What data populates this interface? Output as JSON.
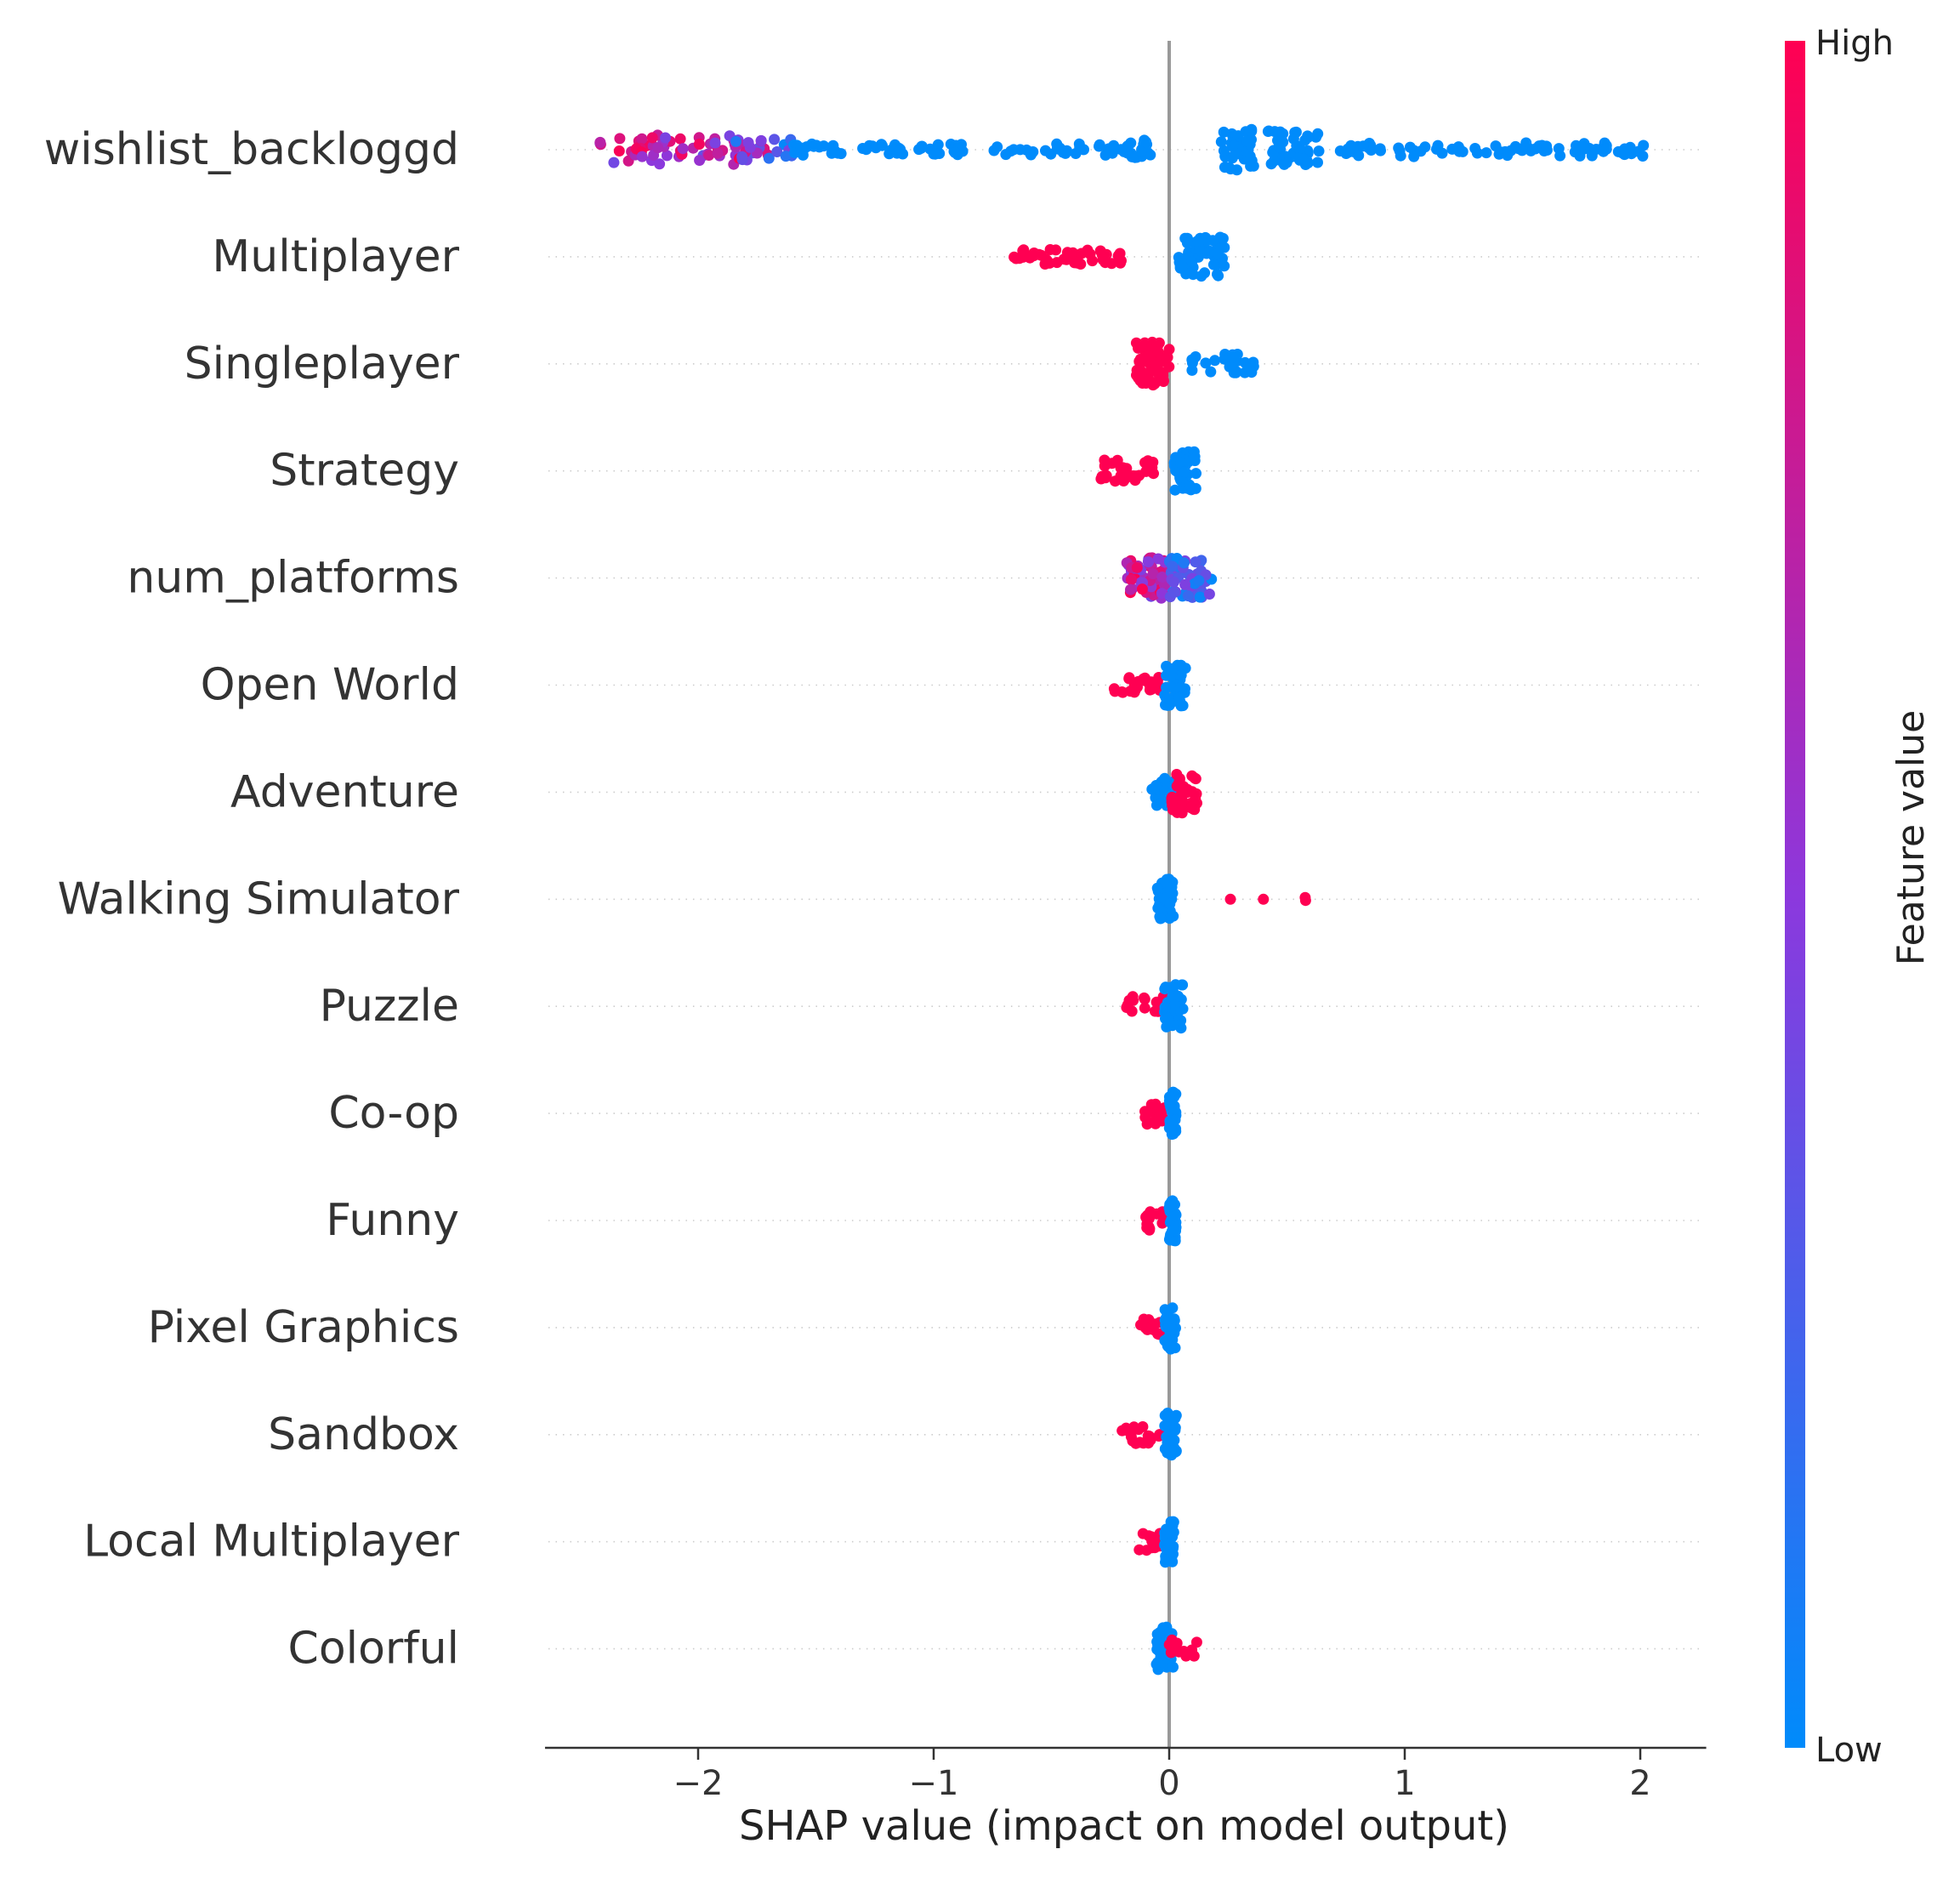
{
  "chart_data": {
    "type": "scatter",
    "subtype": "shap-beeswarm",
    "xlabel": "SHAP value (impact on model output)",
    "xlim": [
      -2.65,
      2.28
    ],
    "xticks": [
      -2,
      -1,
      0,
      1,
      2
    ],
    "xtick_labels": [
      "−2",
      "−1",
      "0",
      "1",
      "2"
    ],
    "zero_line": 0,
    "grid": "dotted-row-guides",
    "colorbar": {
      "title": "Feature value",
      "high_label": "High",
      "low_label": "Low",
      "low_color": "#008BFB",
      "mid_color": "#8C38DD",
      "high_color": "#FF0052"
    },
    "features": [
      {
        "name": "wishlist_backloggd",
        "clusters": [
          {
            "from": -2.42,
            "to": -1.7,
            "count": 70,
            "spread": 0.3,
            "mix": [
              0.35,
              1.0
            ]
          },
          {
            "from": -1.9,
            "to": -1.6,
            "count": 14,
            "spread": 0.22,
            "mix": [
              0.0,
              0.5
            ]
          },
          {
            "from": -1.6,
            "to": -0.15,
            "count": 90,
            "spread": 0.12,
            "mix": [
              0.0,
              0.0
            ]
          },
          {
            "from": -0.18,
            "to": -0.08,
            "count": 16,
            "spread": 0.2,
            "mix": [
              0.0,
              0.0
            ]
          },
          {
            "from": 0.22,
            "to": 0.36,
            "count": 36,
            "spread": 0.42,
            "mix": [
              0.0,
              0.0
            ]
          },
          {
            "from": 0.42,
            "to": 0.65,
            "count": 44,
            "spread": 0.38,
            "mix": [
              0.0,
              0.0
            ]
          },
          {
            "from": 0.7,
            "to": 2.05,
            "count": 78,
            "spread": 0.14,
            "mix": [
              0.0,
              0.0
            ]
          }
        ]
      },
      {
        "name": "Multiplayer",
        "clusters": [
          {
            "from": -0.66,
            "to": -0.18,
            "count": 48,
            "spread": 0.16,
            "mix": [
              1.0,
              1.0
            ]
          },
          {
            "from": 0.04,
            "to": 0.24,
            "count": 52,
            "spread": 0.4,
            "mix": [
              0.0,
              0.0
            ]
          }
        ]
      },
      {
        "name": "Singleplayer",
        "clusters": [
          {
            "from": -0.14,
            "to": 0.0,
            "count": 70,
            "spread": 0.44,
            "mix": [
              1.0,
              1.0
            ]
          },
          {
            "from": 0.06,
            "to": 0.36,
            "count": 26,
            "spread": 0.2,
            "mix": [
              0.0,
              0.0
            ]
          }
        ]
      },
      {
        "name": "Strategy",
        "clusters": [
          {
            "from": -0.3,
            "to": -0.06,
            "count": 30,
            "spread": 0.22,
            "mix": [
              1.0,
              1.0
            ]
          },
          {
            "from": 0.02,
            "to": 0.12,
            "count": 34,
            "spread": 0.4,
            "mix": [
              0.0,
              0.0
            ]
          }
        ]
      },
      {
        "name": "num_platforms",
        "clusters": [
          {
            "from": -0.18,
            "to": 0.0,
            "count": 70,
            "spread": 0.42,
            "mix": [
              0.4,
              1.0
            ]
          },
          {
            "from": 0.0,
            "to": 0.18,
            "count": 50,
            "spread": 0.4,
            "mix": [
              0.0,
              0.45
            ]
          }
        ]
      },
      {
        "name": "Open World",
        "clusters": [
          {
            "from": -0.24,
            "to": -0.03,
            "count": 24,
            "spread": 0.16,
            "mix": [
              1.0,
              1.0
            ]
          },
          {
            "from": -0.02,
            "to": 0.07,
            "count": 40,
            "spread": 0.44,
            "mix": [
              0.0,
              0.0
            ]
          }
        ]
      },
      {
        "name": "Adventure",
        "clusters": [
          {
            "from": -0.08,
            "to": 0.02,
            "count": 30,
            "spread": 0.28,
            "mix": [
              0.0,
              0.0
            ]
          },
          {
            "from": 0.0,
            "to": 0.12,
            "count": 36,
            "spread": 0.44,
            "mix": [
              1.0,
              1.0
            ]
          }
        ]
      },
      {
        "name": "Walking Simulator",
        "clusters": [
          {
            "from": -0.05,
            "to": 0.02,
            "count": 44,
            "spread": 0.42,
            "mix": [
              0.0,
              0.0
            ]
          },
          {
            "from": 0.26,
            "to": 0.26,
            "count": 1,
            "spread": 0.0,
            "mix": [
              1.0,
              1.0
            ]
          },
          {
            "from": 0.4,
            "to": 0.4,
            "count": 1,
            "spread": 0.0,
            "mix": [
              1.0,
              1.0
            ]
          },
          {
            "from": 0.56,
            "to": 0.58,
            "count": 2,
            "spread": 0.04,
            "mix": [
              1.0,
              1.0
            ]
          }
        ]
      },
      {
        "name": "Puzzle",
        "clusters": [
          {
            "from": -0.2,
            "to": -0.02,
            "count": 18,
            "spread": 0.2,
            "mix": [
              1.0,
              1.0
            ]
          },
          {
            "from": -0.02,
            "to": 0.06,
            "count": 36,
            "spread": 0.44,
            "mix": [
              0.0,
              0.0
            ]
          }
        ]
      },
      {
        "name": "Co-op",
        "clusters": [
          {
            "from": -0.11,
            "to": -0.02,
            "count": 18,
            "spread": 0.22,
            "mix": [
              1.0,
              1.0
            ]
          },
          {
            "from": 0.0,
            "to": 0.03,
            "count": 40,
            "spread": 0.44,
            "mix": [
              0.0,
              0.0
            ]
          }
        ]
      },
      {
        "name": "Funny",
        "clusters": [
          {
            "from": -0.11,
            "to": -0.02,
            "count": 16,
            "spread": 0.2,
            "mix": [
              1.0,
              1.0
            ]
          },
          {
            "from": 0.0,
            "to": 0.03,
            "count": 40,
            "spread": 0.44,
            "mix": [
              0.0,
              0.0
            ]
          }
        ]
      },
      {
        "name": "Pixel Graphics",
        "clusters": [
          {
            "from": -0.13,
            "to": -0.02,
            "count": 16,
            "spread": 0.2,
            "mix": [
              1.0,
              1.0
            ]
          },
          {
            "from": -0.02,
            "to": 0.03,
            "count": 40,
            "spread": 0.44,
            "mix": [
              0.0,
              0.0
            ]
          }
        ]
      },
      {
        "name": "Sandbox",
        "clusters": [
          {
            "from": -0.2,
            "to": -0.04,
            "count": 18,
            "spread": 0.18,
            "mix": [
              1.0,
              1.0
            ]
          },
          {
            "from": -0.02,
            "to": 0.03,
            "count": 40,
            "spread": 0.44,
            "mix": [
              0.0,
              0.0
            ]
          }
        ]
      },
      {
        "name": "Local Multiplayer",
        "clusters": [
          {
            "from": -0.13,
            "to": -0.02,
            "count": 14,
            "spread": 0.2,
            "mix": [
              1.0,
              1.0
            ]
          },
          {
            "from": -0.02,
            "to": 0.02,
            "count": 40,
            "spread": 0.44,
            "mix": [
              0.0,
              0.0
            ]
          }
        ]
      },
      {
        "name": "Colorful",
        "clusters": [
          {
            "from": -0.06,
            "to": 0.02,
            "count": 40,
            "spread": 0.44,
            "mix": [
              0.0,
              0.0
            ]
          },
          {
            "from": 0.0,
            "to": 0.12,
            "count": 14,
            "spread": 0.18,
            "mix": [
              1.0,
              1.0
            ]
          }
        ]
      }
    ]
  }
}
